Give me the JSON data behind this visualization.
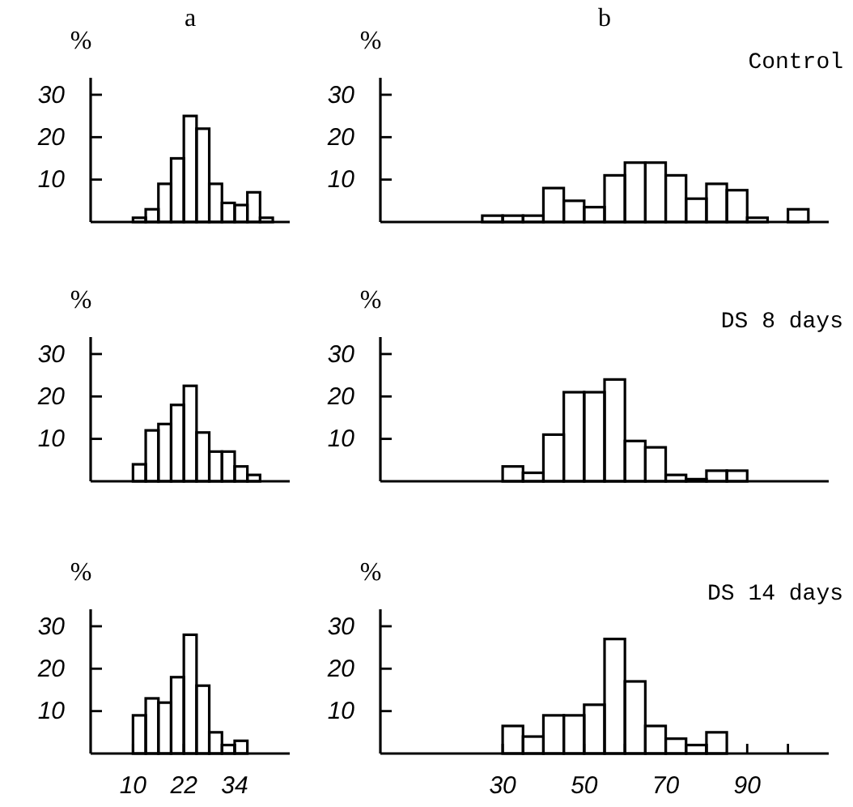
{
  "chart_data": [
    {
      "type": "histogram",
      "title": "a",
      "ylabel": "%",
      "bins": [
        10,
        13,
        16,
        19,
        22,
        25,
        28,
        31,
        34,
        37,
        40,
        43
      ],
      "values": [
        1,
        3,
        9,
        15,
        25,
        22,
        9,
        4.5,
        4,
        7,
        1
      ],
      "color": "#000000",
      "xlim": [
        0,
        47
      ],
      "ylim": [
        0,
        34
      ],
      "yticks": [
        10,
        20,
        30
      ],
      "tick_labels": "y"
    },
    {
      "type": "histogram",
      "title": "b",
      "ylabel": "%",
      "annotations": [
        "Control"
      ],
      "bins": [
        25,
        30,
        35,
        40,
        45,
        50,
        55,
        60,
        65,
        70,
        75,
        80,
        85,
        90,
        95,
        100,
        105
      ],
      "values": [
        1.5,
        1.5,
        1.5,
        8,
        5,
        3.5,
        11,
        14,
        14,
        11,
        5.5,
        9,
        7.5,
        1,
        0,
        3
      ],
      "color": "#000000",
      "xlim": [
        0,
        110
      ],
      "ylim": [
        0,
        34
      ],
      "yticks": [
        10,
        20,
        30
      ],
      "tick_labels": "y"
    },
    {
      "type": "histogram",
      "ylabel": "%",
      "bins": [
        10,
        13,
        16,
        19,
        22,
        25,
        28,
        31,
        34,
        37,
        40
      ],
      "values": [
        4,
        12,
        13.5,
        18,
        22.5,
        11.5,
        7,
        7,
        3.5,
        1.5
      ],
      "color": "#000000",
      "xlim": [
        0,
        47
      ],
      "ylim": [
        0,
        34
      ],
      "yticks": [
        10,
        20,
        30
      ],
      "tick_labels": "y"
    },
    {
      "type": "histogram",
      "ylabel": "%",
      "annotations": [
        "DS 8 days"
      ],
      "bins": [
        30,
        35,
        40,
        45,
        50,
        55,
        60,
        65,
        70,
        75,
        80,
        85,
        90
      ],
      "values": [
        3.5,
        2,
        11,
        21,
        21,
        24,
        9.5,
        8,
        1.5,
        0.5,
        2.5,
        2.5
      ],
      "color": "#000000",
      "xlim": [
        0,
        110
      ],
      "ylim": [
        0,
        34
      ],
      "yticks": [
        10,
        20,
        30
      ],
      "tick_labels": "y"
    },
    {
      "type": "histogram",
      "ylabel": "%",
      "bins": [
        10,
        13,
        16,
        19,
        22,
        25,
        28,
        31,
        34,
        37
      ],
      "values": [
        9,
        13,
        12,
        18,
        28,
        16,
        5,
        2,
        3
      ],
      "color": "#000000",
      "xlim": [
        0,
        47
      ],
      "ylim": [
        0,
        34
      ],
      "xticks": [
        10,
        22,
        34
      ],
      "yticks": [
        10,
        20,
        30
      ]
    },
    {
      "type": "histogram",
      "ylabel": "%",
      "annotations": [
        "DS 14 days"
      ],
      "bins": [
        30,
        35,
        40,
        45,
        50,
        55,
        60,
        65,
        70,
        75,
        80,
        85
      ],
      "values": [
        6.5,
        4,
        9,
        9,
        11.5,
        27,
        17,
        6.5,
        3.5,
        2,
        5
      ],
      "color": "#000000",
      "xlim": [
        0,
        110
      ],
      "ylim": [
        0,
        34
      ],
      "xticks": [
        30,
        {
          "value": 40,
          "label": null
        },
        50,
        {
          "value": 60,
          "label": null
        },
        70,
        {
          "value": 80,
          "label": null
        },
        90,
        {
          "value": 100,
          "label": null
        }
      ],
      "yticks": [
        10,
        20,
        30
      ]
    }
  ]
}
